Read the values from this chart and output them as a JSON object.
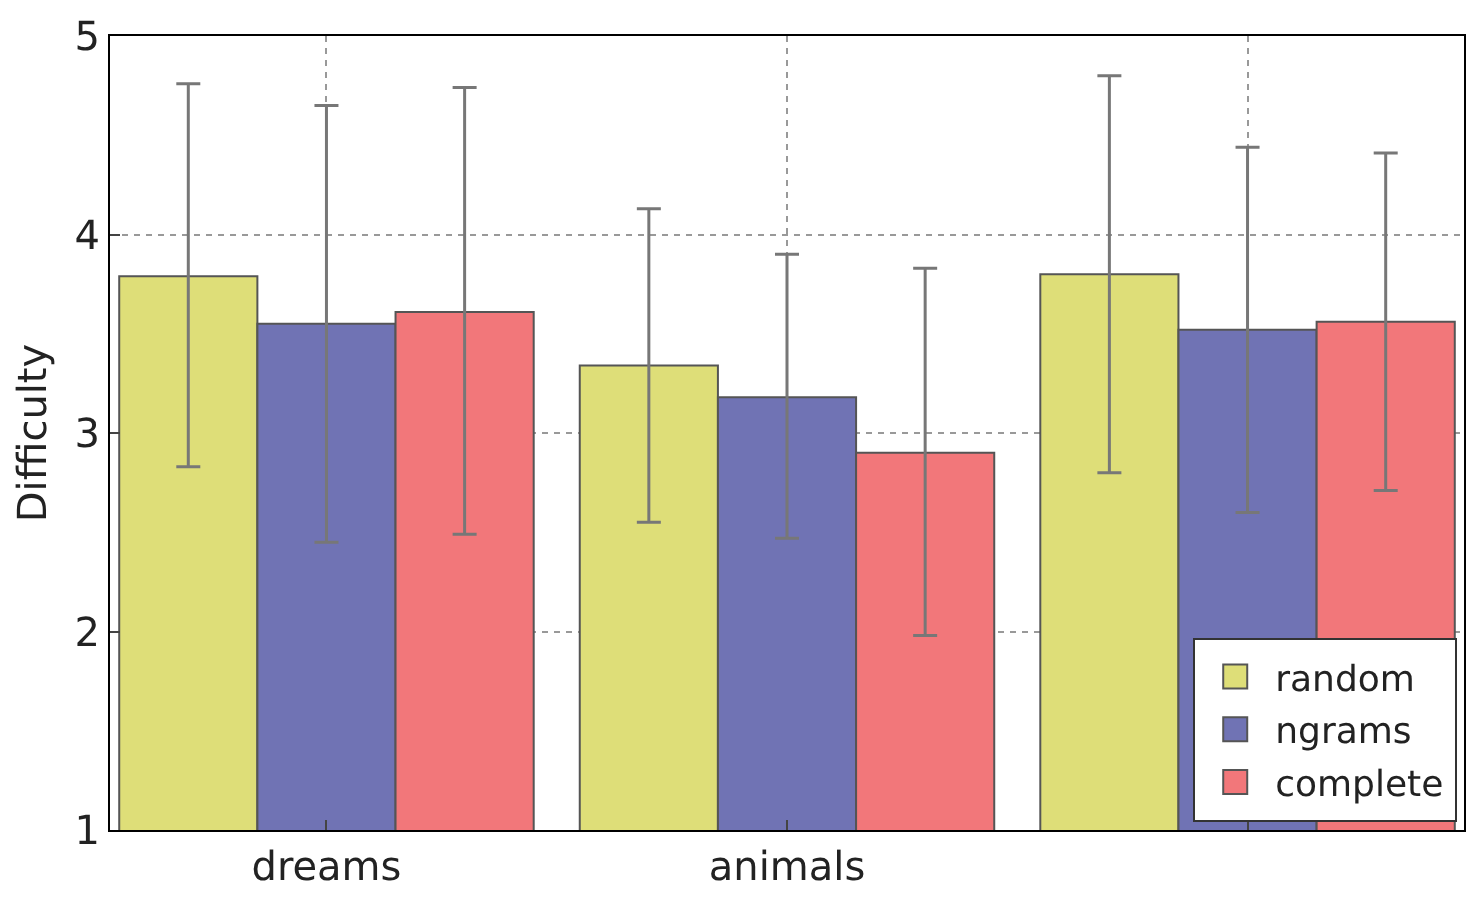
{
  "chart_data": {
    "type": "bar",
    "ylabel": "Difficulty",
    "categories": [
      "dreams",
      "animals",
      null
    ],
    "series": [
      {
        "name": "random",
        "color": "#dede78",
        "values": [
          3.79,
          3.34,
          3.8
        ],
        "errors": [
          [
            2.83,
            4.76
          ],
          [
            2.55,
            4.13
          ],
          [
            2.8,
            4.8
          ]
        ]
      },
      {
        "name": "ngrams",
        "color": "#7073b4",
        "values": [
          3.55,
          3.18,
          3.52
        ],
        "errors": [
          [
            2.45,
            4.65
          ],
          [
            2.47,
            3.9
          ],
          [
            2.6,
            4.44
          ]
        ]
      },
      {
        "name": "complete",
        "color": "#f2777a",
        "values": [
          3.61,
          2.9,
          3.56
        ],
        "errors": [
          [
            2.49,
            4.74
          ],
          [
            1.98,
            3.83
          ],
          [
            2.71,
            4.41
          ]
        ]
      }
    ],
    "ylim": [
      1,
      5
    ],
    "yticks": [
      1,
      2,
      3,
      4,
      5
    ],
    "grid": true,
    "legend": "bottom right"
  }
}
